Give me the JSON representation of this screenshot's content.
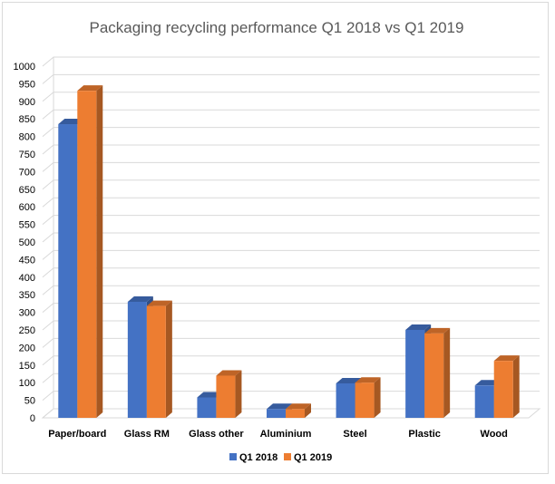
{
  "chart_data": {
    "type": "bar",
    "title": "Packaging recycling performance Q1 2018 vs Q1 2019",
    "xlabel": "",
    "ylabel": "",
    "ylim": [
      0,
      1000
    ],
    "yticks": [
      0,
      50,
      100,
      150,
      200,
      250,
      300,
      350,
      400,
      450,
      500,
      550,
      600,
      650,
      700,
      750,
      800,
      850,
      900,
      950,
      1000
    ],
    "categories": [
      "Paper/board",
      "Glass RM",
      "Glass other",
      "Aluminium",
      "Steel",
      "Plastic",
      "Wood"
    ],
    "series": [
      {
        "name": "Q1 2018",
        "color": "#4472c4",
        "values": [
          835,
          330,
          58,
          25,
          98,
          250,
          92
        ]
      },
      {
        "name": "Q1 2019",
        "color": "#ed7d31",
        "values": [
          930,
          318,
          120,
          25,
          100,
          240,
          162
        ]
      }
    ],
    "grid": true,
    "legend_position": "bottom"
  }
}
